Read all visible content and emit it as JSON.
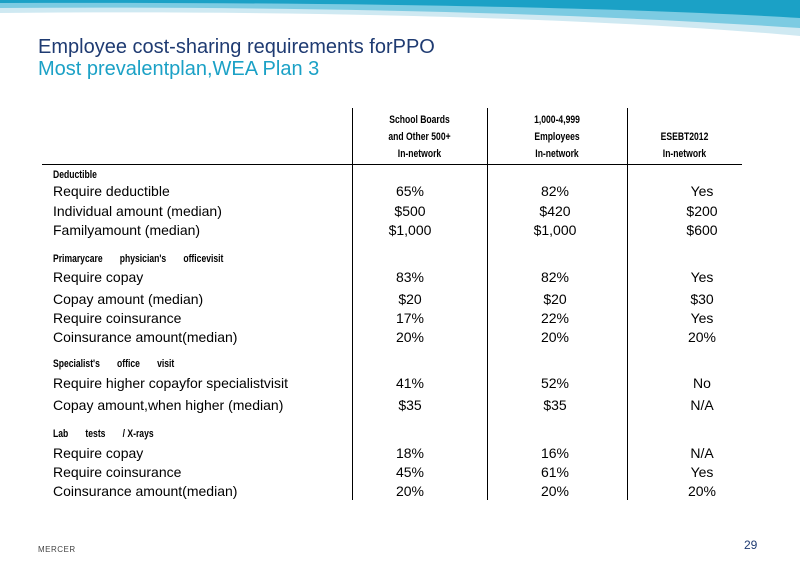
{
  "title": "Employee cost-sharing requirements forPPO",
  "subtitle": "Most prevalentplan,WEA Plan 3",
  "columns": [
    {
      "line1": "School      Boards",
      "line2": "and    Other    500+",
      "line3": "In-network"
    },
    {
      "line1": "1,000-4,999",
      "line2": "Employees",
      "line3": "In-network"
    },
    {
      "line1": "",
      "line2": "ESEBT2012",
      "line3": "In-network"
    }
  ],
  "sections": [
    {
      "heading": [
        "Deductible"
      ],
      "rows": [
        {
          "label": "Require deductible",
          "values": [
            "65%",
            "82%",
            "Yes"
          ]
        },
        {
          "label": "Individual amount (median)",
          "values": [
            "$500",
            "$420",
            "$200"
          ]
        },
        {
          "label": "Familyamount (median)",
          "values": [
            "$1,000",
            "$1,000",
            "$600"
          ]
        }
      ]
    },
    {
      "heading": [
        "Primarycare",
        "physician's",
        "officevisit"
      ],
      "rows": [
        {
          "label": "Require copay",
          "values": [
            "83%",
            "82%",
            "Yes"
          ]
        },
        {
          "label": "Copay amount (median)",
          "values": [
            "$20",
            "$20",
            "$30"
          ]
        },
        {
          "label": "Require coinsurance",
          "values": [
            "17%",
            "22%",
            "Yes"
          ]
        },
        {
          "label": "Coinsurance amount(median)",
          "values": [
            "20%",
            "20%",
            "20%"
          ]
        }
      ]
    },
    {
      "heading": [
        "Specialist's",
        "office",
        "visit"
      ],
      "rows": [
        {
          "label": "Require higher copayfor specialistvisit",
          "values": [
            "41%",
            "52%",
            "No"
          ]
        },
        {
          "label": "Copay amount,when higher (median)",
          "values": [
            "$35",
            "$35",
            "N/A"
          ]
        }
      ]
    },
    {
      "heading": [
        "Lab",
        "tests",
        "/ X-rays"
      ],
      "rows": [
        {
          "label": "Require copay",
          "values": [
            "18%",
            "16%",
            "N/A"
          ]
        },
        {
          "label": "Require coinsurance",
          "values": [
            "45%",
            "61%",
            "Yes"
          ]
        },
        {
          "label": "Coinsurance amount(median)",
          "values": [
            "20%",
            "20%",
            "20%"
          ]
        }
      ]
    }
  ],
  "footer": {
    "brand": "MERCER",
    "page_number": "29"
  },
  "colors": {
    "title": "#1f3b72",
    "subtitle": "#1ba1c6",
    "banner_light": "#bfe3ef",
    "banner_mid": "#6cc4de",
    "banner_dark": "#1ba1c6"
  }
}
